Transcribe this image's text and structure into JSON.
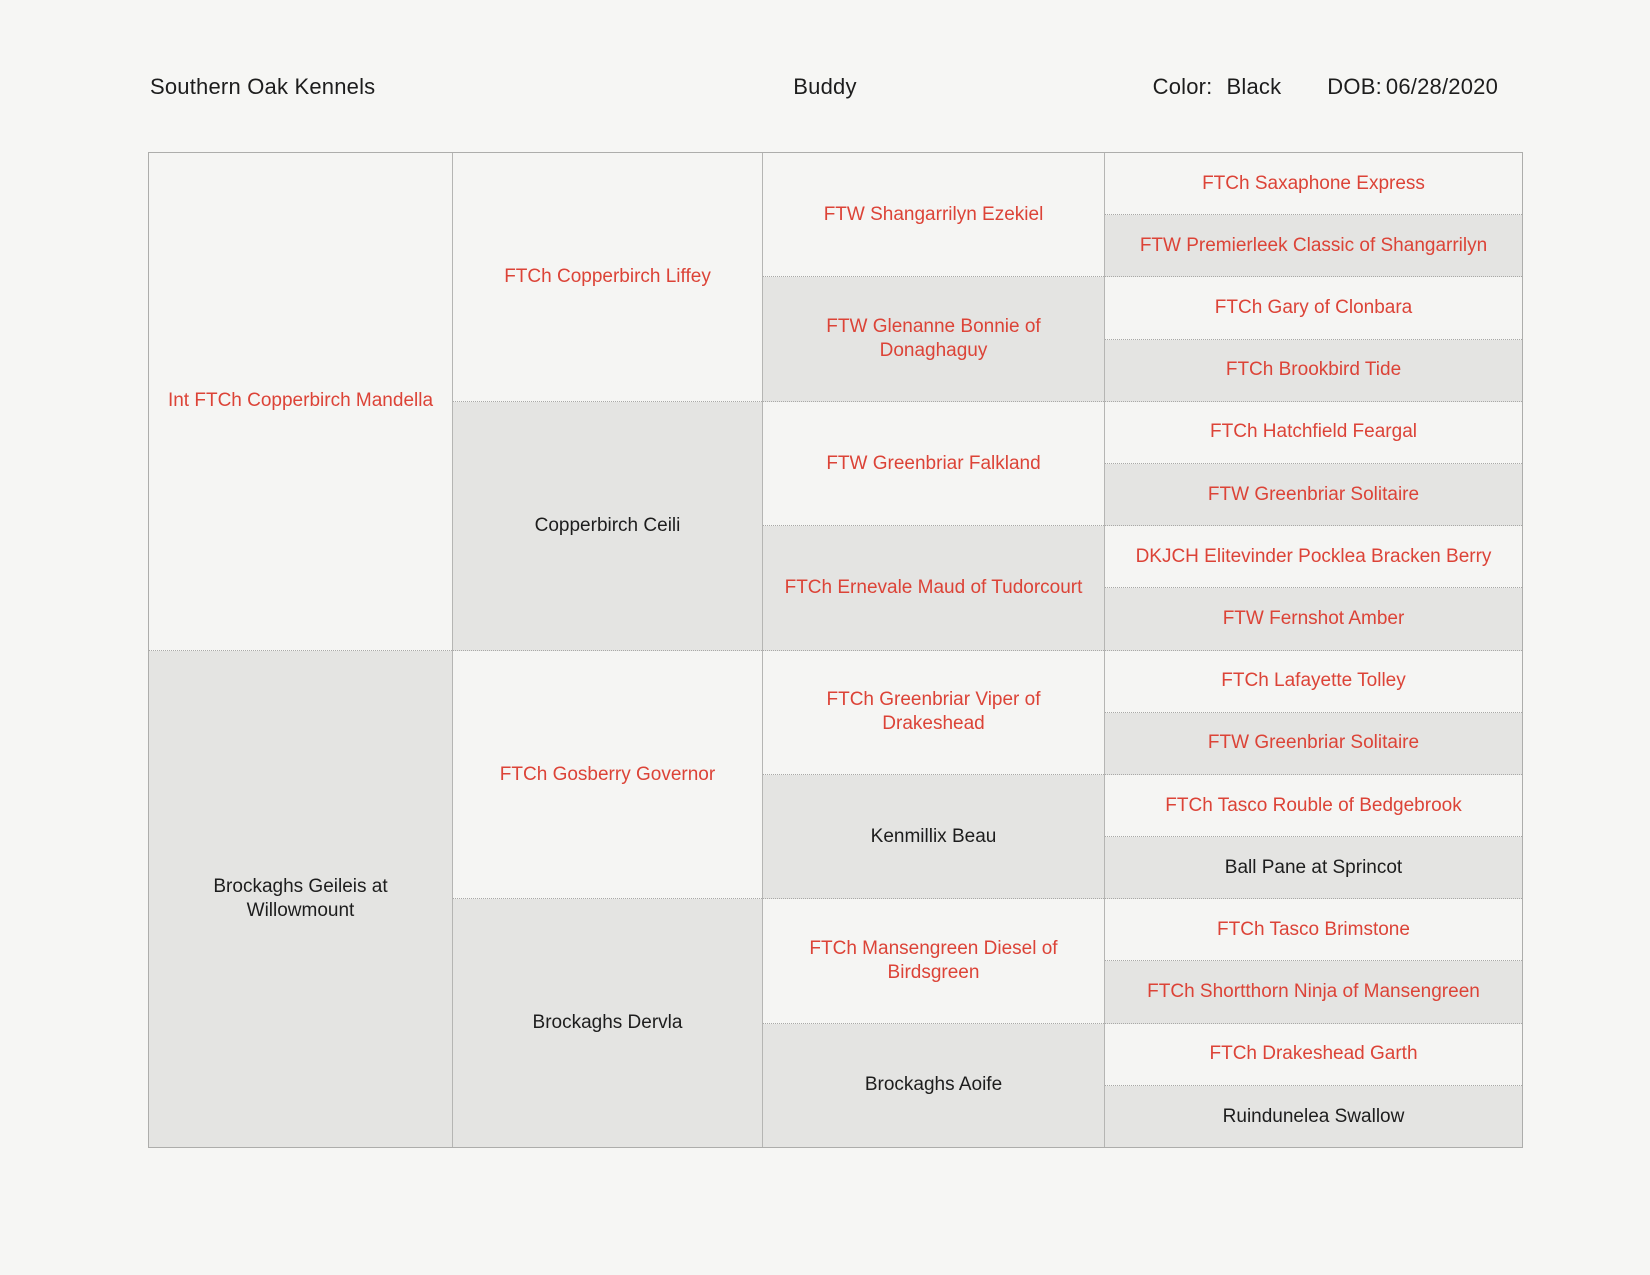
{
  "header": {
    "kennel": "Southern Oak Kennels",
    "dog_name": "Buddy",
    "color_label": "Color:",
    "color_value": "Black",
    "dob_label": "DOB:",
    "dob_value": "06/28/2020"
  },
  "colors": {
    "titled_name_red": "#dc4337",
    "untitled_name_black": "#1d1d1d",
    "cell_light": "#f5f5f3",
    "cell_shaded": "#e4e4e2",
    "page_background": "#f6f6f4"
  },
  "pedigree": {
    "generation1": [
      {
        "name": "Int FTCh Copperbirch Mandella",
        "titled": true
      },
      {
        "name": "Brockaghs Geileis at\nWillowmount",
        "titled": false
      }
    ],
    "generation2": [
      {
        "name": "FTCh Copperbirch Liffey",
        "titled": true
      },
      {
        "name": "Copperbirch Ceili",
        "titled": false
      },
      {
        "name": "FTCh Gosberry Governor",
        "titled": true
      },
      {
        "name": "Brockaghs Dervla",
        "titled": false
      }
    ],
    "generation3": [
      {
        "name": "FTW Shangarrilyn Ezekiel",
        "titled": true
      },
      {
        "name": "FTW Glenanne Bonnie of\nDonaghaguy",
        "titled": true
      },
      {
        "name": "FTW Greenbriar Falkland",
        "titled": true
      },
      {
        "name": "FTCh Ernevale Maud of Tudorcourt",
        "titled": true
      },
      {
        "name": "FTCh Greenbriar Viper of Drakeshead",
        "titled": true
      },
      {
        "name": "Kenmillix Beau",
        "titled": false
      },
      {
        "name": "FTCh Mansengreen Diesel of\nBirdsgreen",
        "titled": true
      },
      {
        "name": "Brockaghs Aoife",
        "titled": false
      }
    ],
    "generation4": [
      {
        "name": "FTCh Saxaphone Express",
        "titled": true
      },
      {
        "name": "FTW Premierleek Classic of Shangarrilyn",
        "titled": true
      },
      {
        "name": "FTCh Gary of Clonbara",
        "titled": true
      },
      {
        "name": "FTCh Brookbird Tide",
        "titled": true
      },
      {
        "name": "FTCh Hatchfield Feargal",
        "titled": true
      },
      {
        "name": "FTW Greenbriar Solitaire",
        "titled": true
      },
      {
        "name": "DKJCH Elitevinder Pocklea Bracken Berry",
        "titled": true
      },
      {
        "name": "FTW Fernshot Amber",
        "titled": true
      },
      {
        "name": "FTCh Lafayette Tolley",
        "titled": true
      },
      {
        "name": "FTW Greenbriar Solitaire",
        "titled": true
      },
      {
        "name": "FTCh Tasco Rouble of Bedgebrook",
        "titled": true
      },
      {
        "name": "Ball Pane at Sprincot",
        "titled": false
      },
      {
        "name": "FTCh Tasco Brimstone",
        "titled": true
      },
      {
        "name": "FTCh Shortthorn Ninja of Mansengreen",
        "titled": true
      },
      {
        "name": "FTCh Drakeshead Garth",
        "titled": true
      },
      {
        "name": "Ruindunelea Swallow",
        "titled": false
      }
    ]
  }
}
